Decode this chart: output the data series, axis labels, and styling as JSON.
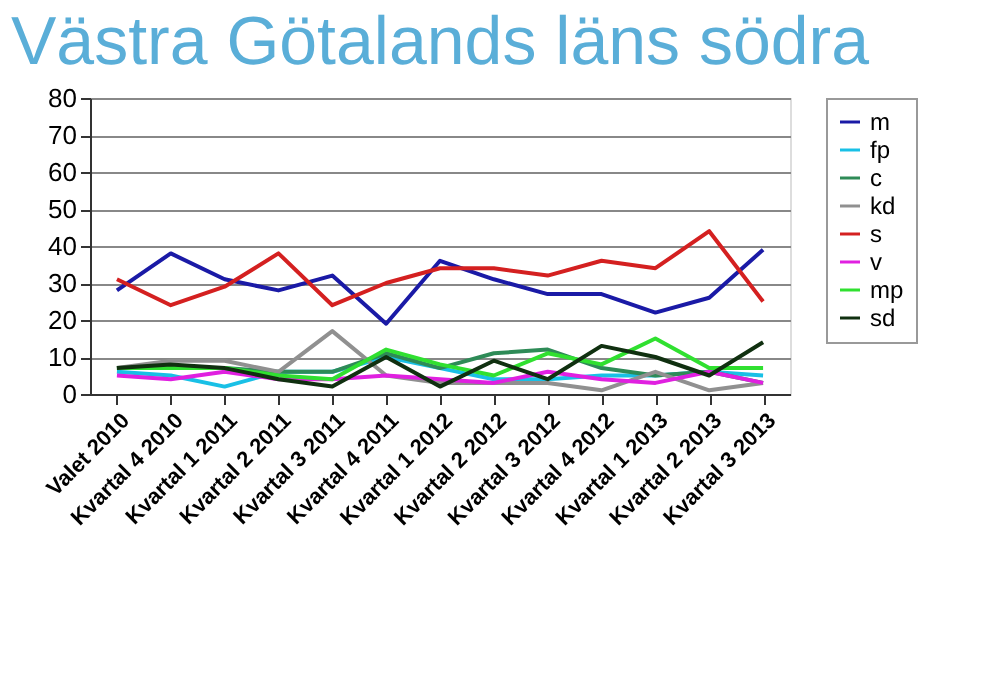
{
  "chart_data": {
    "type": "line",
    "title": "Västra Götalands läns södra",
    "categories": [
      "Valet 2010",
      "Kvartal 4 2010",
      "Kvartal 1 2011",
      "Kvartal 2 2011",
      "Kvartal 3 2011",
      "Kvartal 4 2011",
      "Kvartal 1 2012",
      "Kvartal 2 2012",
      "Kvartal 3 2012",
      "Kvartal 4 2012",
      "Kvartal 1 2013",
      "Kvartal 2 2013",
      "Kvartal 3 2013"
    ],
    "series": [
      {
        "name": "m",
        "color": "#1a1aa6",
        "values": [
          28,
          38,
          31,
          28,
          32,
          19,
          36,
          31,
          27,
          27,
          22,
          26,
          39
        ]
      },
      {
        "name": "fp",
        "color": "#19c0e6",
        "values": [
          6,
          5,
          2,
          6,
          6,
          10,
          7,
          4,
          4,
          5,
          5,
          6,
          5
        ]
      },
      {
        "name": "c",
        "color": "#2e8b57",
        "values": [
          7,
          7,
          7,
          6,
          6,
          11,
          7,
          11,
          12,
          7,
          5,
          6,
          3
        ]
      },
      {
        "name": "kd",
        "color": "#909090",
        "values": [
          7,
          9,
          9,
          6,
          17,
          5,
          3,
          3,
          3,
          1,
          6,
          1,
          3
        ]
      },
      {
        "name": "s",
        "color": "#d42020",
        "values": [
          31,
          24,
          29,
          38,
          24,
          30,
          34,
          34,
          32,
          36,
          34,
          44,
          25
        ]
      },
      {
        "name": "v",
        "color": "#e020e0",
        "values": [
          5,
          4,
          6,
          4,
          4,
          5,
          4,
          3,
          6,
          4,
          3,
          6,
          3
        ]
      },
      {
        "name": "mp",
        "color": "#30e030",
        "values": [
          7,
          7,
          7,
          5,
          4,
          12,
          8,
          5,
          11,
          8,
          15,
          7,
          7
        ]
      },
      {
        "name": "sd",
        "color": "#103010",
        "values": [
          7,
          8,
          7,
          4,
          2,
          10,
          2,
          9,
          4,
          13,
          10,
          5,
          14
        ]
      }
    ],
    "ylim": [
      0,
      80
    ],
    "yticks": [
      0,
      10,
      20,
      30,
      40,
      50,
      60,
      70,
      80
    ],
    "grid": "y",
    "legend": "right",
    "marker": "none",
    "line_style": "solid"
  }
}
